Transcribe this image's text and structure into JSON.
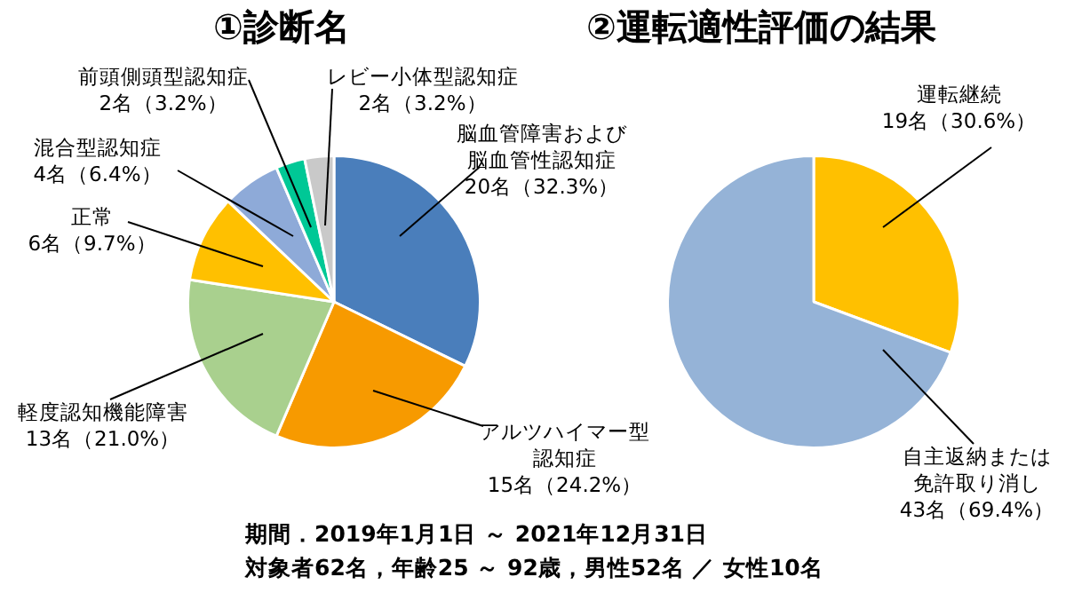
{
  "chart_data": [
    {
      "type": "pie",
      "title": "①診断名",
      "categories": [
        "脳血管障害および脳血管性認知症",
        "アルツハイマー型認知症",
        "軽度認知機能障害",
        "正常",
        "混合型認知症",
        "前頭側頭型認知症",
        "レビー小体型認知症"
      ],
      "values": [
        20,
        15,
        13,
        6,
        4,
        2,
        2
      ],
      "colors": [
        "#4a7ebb",
        "#f79a00",
        "#a9d08e",
        "#ffc000",
        "#8eaad8",
        "#00c896",
        "#c9c9c9"
      ],
      "value_labels": [
        "20名（32.3%）",
        "15名（24.2%）",
        "13名（21.0%）",
        "6名（9.7%）",
        "4名（6.4%）",
        "2名（3.2%）",
        "2名（3.2%）"
      ],
      "legend": false,
      "annotations": [
        "期間．2019年1月1日 ～ 2021年12月31日",
        "対象者62名，年齢25 ～ 92歳，男性52名 ／ 女性10名"
      ]
    },
    {
      "type": "pie",
      "title": "②運転適性評価の結果",
      "categories": [
        "運転継続",
        "自主返納または免許取り消し"
      ],
      "values": [
        19,
        43
      ],
      "colors": [
        "#ffc000",
        "#95b3d7"
      ],
      "value_labels": [
        "19名（30.6%）",
        "43名（69.4%）"
      ],
      "legend": false
    }
  ]
}
